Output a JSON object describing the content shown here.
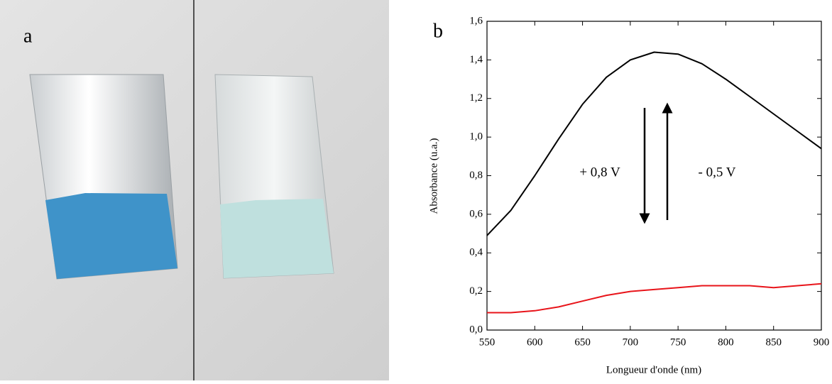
{
  "panel_labels": [
    "a",
    "b"
  ],
  "chart_data": {
    "type": "line",
    "x_label": "Longueur d'onde (nm)",
    "y_label": "Absorbance (u.a.)",
    "annotations": [
      "+ 0,8 V",
      "- 0,5 V"
    ],
    "x": [
      550,
      575,
      600,
      625,
      650,
      675,
      700,
      725,
      750,
      775,
      800,
      825,
      850,
      875,
      900
    ],
    "series": [
      {
        "color": "#000000",
        "values": [
          0.49,
          0.62,
          0.8,
          0.99,
          1.17,
          1.31,
          1.4,
          1.44,
          1.43,
          1.38,
          1.3,
          1.21,
          1.12,
          1.03,
          0.94
        ]
      },
      {
        "color": "#e8141a",
        "values": [
          0.09,
          0.09,
          0.1,
          0.12,
          0.15,
          0.18,
          0.2,
          0.21,
          0.22,
          0.23,
          0.23,
          0.23,
          0.22,
          0.23,
          0.24
        ]
      }
    ],
    "xlim": [
      550,
      900
    ],
    "xticks": [
      550,
      600,
      650,
      700,
      750,
      800,
      850,
      900
    ],
    "ylim": [
      0,
      1.6
    ],
    "yticks": [
      {
        "value": 0,
        "label": "0,0"
      },
      {
        "value": 0.2,
        "label": "0,2"
      },
      {
        "value": 0.4,
        "label": "0,4"
      },
      {
        "value": 0.6,
        "label": "0,6"
      },
      {
        "value": 0.8,
        "label": "0,8"
      },
      {
        "value": 1.0,
        "label": "1,0"
      },
      {
        "value": 1.2,
        "label": "1,2"
      },
      {
        "value": 1.4,
        "label": "1,4"
      },
      {
        "value": 1.6,
        "label": "1,6"
      }
    ]
  }
}
